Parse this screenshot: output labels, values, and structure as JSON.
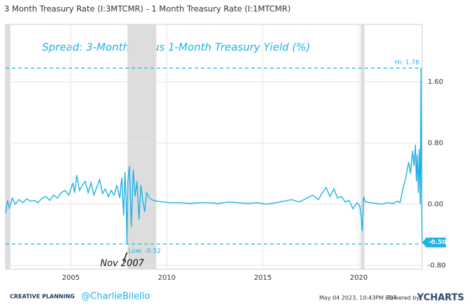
{
  "header": "3 Month Treasury Rate (I:3MTCMR) - 1 Month Treasury Rate (I:1MTCMR)",
  "chart_data": {
    "type": "line",
    "title": "Spread: 3-Month minus 1-Month Treasury Yield (%)",
    "series": [
      {
        "name": "3 Month Treasury Rate (I:3MTCMR) - 1 Month Treasury Rate (I:1MTCMR)",
        "color": "#1fb2e6",
        "x": [
          2001.6,
          2001.7,
          2001.8,
          2001.95,
          2002.1,
          2002.3,
          2002.5,
          2002.7,
          2002.9,
          2003.1,
          2003.3,
          2003.5,
          2003.7,
          2003.9,
          2004.1,
          2004.3,
          2004.5,
          2004.7,
          2004.9,
          2005.0,
          2005.1,
          2005.2,
          2005.3,
          2005.45,
          2005.6,
          2005.75,
          2005.9,
          2006.05,
          2006.2,
          2006.35,
          2006.5,
          2006.65,
          2006.8,
          2006.95,
          2007.1,
          2007.25,
          2007.4,
          2007.55,
          2007.65,
          2007.75,
          2007.82,
          2007.88,
          2007.92,
          2007.97,
          2008.05,
          2008.15,
          2008.25,
          2008.35,
          2008.45,
          2008.55,
          2008.65,
          2008.75,
          2008.85,
          2008.95,
          2009.1,
          2009.3,
          2009.5,
          2009.8,
          2010.2,
          2010.7,
          2011.2,
          2011.7,
          2012.2,
          2012.7,
          2013.2,
          2013.7,
          2014.2,
          2014.7,
          2015.2,
          2015.7,
          2016.1,
          2016.5,
          2016.9,
          2017.3,
          2017.6,
          2017.9,
          2018.1,
          2018.3,
          2018.5,
          2018.7,
          2018.9,
          2019.1,
          2019.3,
          2019.5,
          2019.7,
          2019.9,
          2020.05,
          2020.12,
          2020.18,
          2020.25,
          2020.35,
          2020.6,
          2020.9,
          2021.2,
          2021.5,
          2021.8,
          2022.0,
          2022.15,
          2022.3,
          2022.45,
          2022.6,
          2022.7,
          2022.8,
          2022.88,
          2022.95,
          2023.0,
          2023.05,
          2023.1,
          2023.15,
          2023.2,
          2023.24,
          2023.27,
          2023.3
        ],
        "values": [
          -0.12,
          0.05,
          -0.05,
          0.08,
          0.0,
          0.06,
          0.02,
          0.07,
          0.04,
          0.05,
          0.02,
          0.08,
          0.1,
          0.05,
          0.12,
          0.08,
          0.15,
          0.18,
          0.12,
          0.2,
          0.28,
          0.15,
          0.38,
          0.18,
          0.25,
          0.3,
          0.15,
          0.28,
          0.12,
          0.22,
          0.32,
          0.14,
          0.2,
          0.1,
          0.18,
          0.12,
          0.25,
          0.08,
          0.35,
          -0.15,
          0.42,
          0.05,
          -0.52,
          0.3,
          0.5,
          -0.3,
          0.45,
          0.1,
          0.3,
          -0.2,
          0.25,
          0.05,
          -0.1,
          0.15,
          0.08,
          0.05,
          0.04,
          0.03,
          0.02,
          0.02,
          0.01,
          0.02,
          0.02,
          0.01,
          0.03,
          0.02,
          0.01,
          0.02,
          0.0,
          0.02,
          0.04,
          0.06,
          0.03,
          0.08,
          0.12,
          0.06,
          0.15,
          0.22,
          0.1,
          0.2,
          0.08,
          0.1,
          0.03,
          0.05,
          -0.06,
          0.02,
          -0.02,
          -0.15,
          -0.35,
          0.1,
          0.03,
          0.02,
          0.01,
          0.0,
          0.02,
          0.01,
          0.04,
          0.02,
          0.2,
          0.35,
          0.55,
          0.4,
          0.7,
          0.5,
          0.78,
          0.3,
          0.65,
          0.15,
          0.72,
          0.0,
          1.78,
          0.2,
          -0.5
        ]
      }
    ],
    "recessions": [
      [
        2001.6,
        2001.85
      ],
      [
        2007.95,
        2009.45
      ],
      [
        2020.1,
        2020.3
      ]
    ],
    "xlim": [
      2001.6,
      2023.3
    ],
    "ylim": [
      -0.85,
      2.35
    ],
    "xticks": [
      2005,
      2010,
      2015,
      2020
    ],
    "yticks": [
      {
        "value": -0.8,
        "label": "-0.80"
      },
      {
        "value": 0,
        "label": "0.00"
      },
      {
        "value": 0.8,
        "label": "0.80"
      },
      {
        "value": 1.6,
        "label": "1.60"
      }
    ],
    "grid": true,
    "hi": {
      "value": 1.78,
      "label": "Hi: 1.78"
    },
    "low": {
      "value": -0.52,
      "label": "Low: -0.52"
    },
    "last": {
      "value": -0.5,
      "label": "-0.50"
    },
    "annotation": "Nov 2007"
  },
  "footer": {
    "brand": "CREATIVE PLANNING",
    "handle": "@CharlieBilello",
    "date": "May 04 2023, 10:43PM EDT.",
    "powered": "Powered by",
    "logo": "YCHARTS"
  }
}
